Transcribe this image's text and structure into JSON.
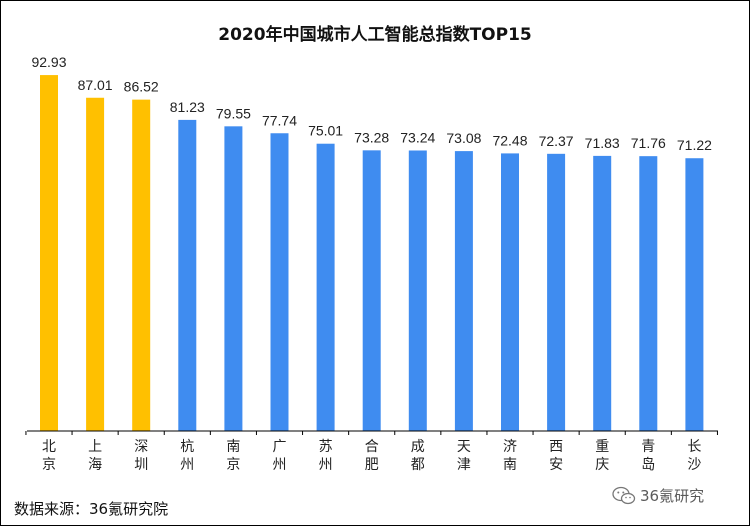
{
  "chart_data": {
    "type": "bar",
    "title": "2020年中国城市人工智能总指数TOP15",
    "categories": [
      "北京",
      "上海",
      "深圳",
      "杭州",
      "南京",
      "广州",
      "苏州",
      "合肥",
      "成都",
      "天津",
      "济南",
      "西安",
      "重庆",
      "青岛",
      "长沙"
    ],
    "values": [
      92.93,
      87.01,
      86.52,
      81.23,
      79.55,
      77.74,
      75.01,
      73.28,
      73.24,
      73.08,
      72.48,
      72.37,
      71.83,
      71.76,
      71.22
    ],
    "value_labels": [
      "92.93",
      "87.01",
      "86.52",
      "81.23",
      "79.55",
      "77.74",
      "75.01",
      "73.28",
      "73.24",
      "73.08",
      "72.48",
      "72.37",
      "71.83",
      "71.76",
      "71.22"
    ],
    "highlight_count": 3,
    "colors": {
      "highlight": "#FFC000",
      "normal": "#3F8CF0",
      "axis": "#000000"
    },
    "ylim": [
      0,
      100
    ],
    "grid": false,
    "legend": "none"
  },
  "source": "数据来源：36氪研究院",
  "watermark": {
    "icon": "wechat-icon",
    "text": "36氪研究"
  }
}
